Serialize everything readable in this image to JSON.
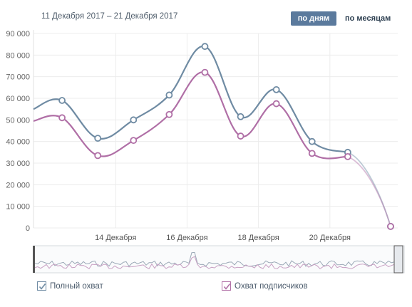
{
  "header": {
    "date_range": "11 Декабря 2017 – 21 Декабря 2017",
    "btn_days": "по дням",
    "btn_months": "по месяцам"
  },
  "legend": {
    "full_reach": "Полный охват",
    "subscriber_reach": "Охват подписчиков"
  },
  "colors": {
    "full_reach": "#6f8ba3",
    "subscriber_reach": "#b06fa6",
    "grid": "#ececec",
    "arrow": "#d9272e",
    "button_bg": "#5b7a9d"
  },
  "annotation": {
    "type": "arrow",
    "color": "#d9272e",
    "target_x": 8,
    "target_y": 84000
  },
  "chart_data": {
    "type": "line",
    "title": "",
    "xlabel": "",
    "ylabel": "",
    "ylim": [
      0,
      90000
    ],
    "xlim": [
      11.7,
      21.9
    ],
    "y_ticks": [
      "0",
      "10 000",
      "20 000",
      "30 000",
      "40 000",
      "50 000",
      "60 000",
      "70 000",
      "80 000",
      "90 000"
    ],
    "x_ticks": [
      {
        "x": 14,
        "label": "14 Декабря"
      },
      {
        "x": 16,
        "label": "16 Декабря"
      },
      {
        "x": 18,
        "label": "18 Декабря"
      },
      {
        "x": 20,
        "label": "20 Декабря"
      }
    ],
    "grid": true,
    "legend_position": "bottom-left",
    "series": [
      {
        "name": "Полный охват",
        "color": "#6f8ba3",
        "x": [
          11.7,
          12.5,
          13.5,
          14.5,
          15.5,
          16.5,
          17.5,
          18.5,
          19.5,
          20.5,
          21.7
        ],
        "y": [
          55000,
          59000,
          41500,
          50000,
          61500,
          84000,
          51500,
          64000,
          40000,
          35000,
          700
        ],
        "markers": [
          false,
          true,
          true,
          true,
          true,
          true,
          true,
          true,
          true,
          true,
          true
        ]
      },
      {
        "name": "Охват подписчиков",
        "color": "#b06fa6",
        "x": [
          11.7,
          12.5,
          13.5,
          14.5,
          15.5,
          16.5,
          17.5,
          18.5,
          19.5,
          20.5,
          21.7
        ],
        "y": [
          49500,
          51000,
          33500,
          40500,
          52500,
          72000,
          42500,
          57500,
          34500,
          33000,
          700
        ],
        "markers": [
          false,
          true,
          true,
          true,
          true,
          true,
          true,
          true,
          true,
          true,
          true
        ]
      }
    ]
  }
}
